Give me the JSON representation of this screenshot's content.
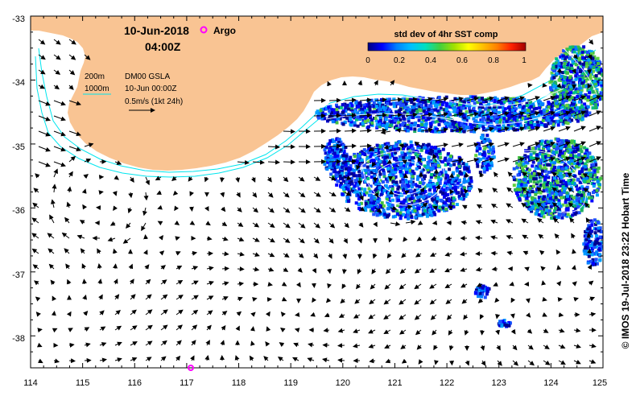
{
  "header": {
    "date": "10-Jun-2018",
    "time": "04:00Z",
    "argo_label": "Argo"
  },
  "legend": {
    "depth_200": "200m",
    "depth_1000": "1000m",
    "product": "DM00 GSLA",
    "product_time": "10-Jun 00:00Z",
    "scale": "0.5m/s (1kt 24h)"
  },
  "colorbar": {
    "title": "std dev of 4hr SST comp",
    "ticks": [
      "0",
      "0.2",
      "0.4",
      "0.6",
      "0.8",
      "1"
    ],
    "colors": [
      "#000080",
      "#0000ff",
      "#0080ff",
      "#00c0ff",
      "#00e0c0",
      "#40d040",
      "#a0e000",
      "#ffff00",
      "#ffc000",
      "#ff8000",
      "#ff2000",
      "#a00000"
    ]
  },
  "axes": {
    "x_ticks": [
      "114",
      "115",
      "116",
      "117",
      "118",
      "119",
      "120",
      "121",
      "122",
      "123",
      "124",
      "125"
    ],
    "y_ticks": [
      "-33",
      "-34",
      "-35",
      "-36",
      "-37",
      "-38"
    ],
    "lon_range": [
      114,
      125
    ],
    "lat_range": [
      -38.5,
      -33
    ]
  },
  "credit": "© IMOS 19-Jul-2018 23:22 Hobart Time",
  "style": {
    "land": "#f9c493",
    "isobath": "#00e5ee",
    "argo_marker": "#ff00ff"
  }
}
